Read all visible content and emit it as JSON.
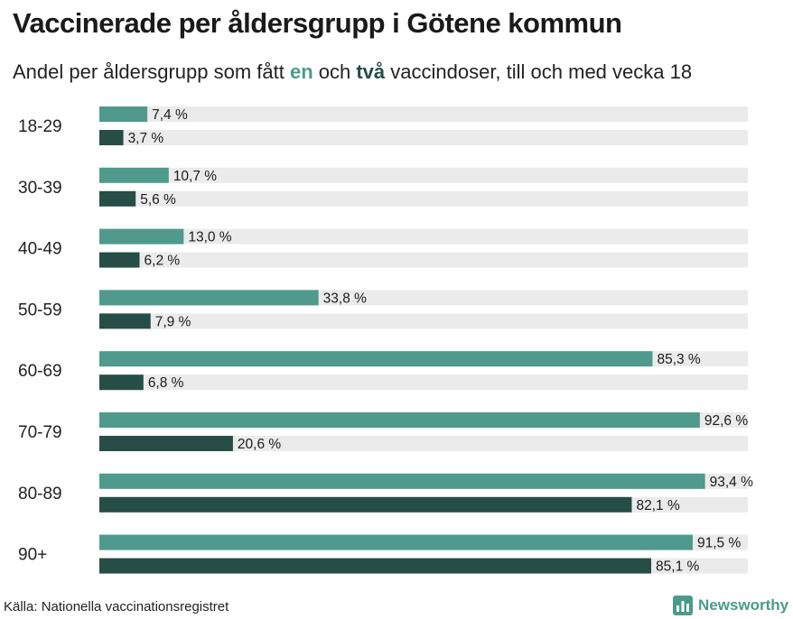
{
  "title": "Vaccinerade per åldersgrupp i Götene kommun",
  "subtitle": {
    "before": "Andel per åldersgrupp som fått ",
    "highlight_one": "en",
    "middle": " och ",
    "highlight_two": "två",
    "after": " vaccindoser, till och med vecka 18"
  },
  "colors": {
    "one_dose": "#4f9a8c",
    "two_doses": "#264d46",
    "track": "#ebebeb",
    "brand": "#4a9a8c"
  },
  "source": "Källa: Nationella vaccinationsregistret",
  "logo": {
    "text": "Newsworthy",
    "icon": "bar-chart-logo-icon"
  },
  "chart_data": {
    "type": "bar",
    "orientation": "horizontal",
    "categories": [
      "18-29",
      "30-39",
      "40-49",
      "50-59",
      "60-69",
      "70-79",
      "80-89",
      "90+"
    ],
    "series": [
      {
        "key": "one_dose",
        "values": [
          7.4,
          10.7,
          13.0,
          33.8,
          85.3,
          92.6,
          93.4,
          91.5
        ],
        "labels": [
          "7,4 %",
          "10,7 %",
          "13,0 %",
          "33,8 %",
          "85,3 %",
          "92,6 %",
          "93,4 %",
          "91,5 %"
        ]
      },
      {
        "key": "two_doses",
        "values": [
          3.7,
          5.6,
          6.2,
          7.9,
          6.8,
          20.6,
          82.1,
          85.1
        ],
        "labels": [
          "3,7 %",
          "5,6 %",
          "6,2 %",
          "7,9 %",
          "6,8 %",
          "20,6 %",
          "82,1 %",
          "85,1 %"
        ]
      }
    ],
    "xlim": [
      0,
      100
    ],
    "grid": false,
    "legend": "inline in subtitle"
  }
}
